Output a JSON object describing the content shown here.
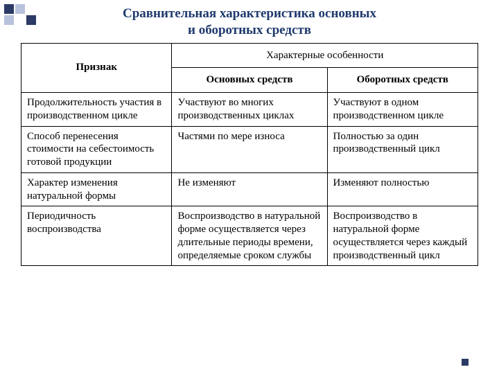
{
  "title_line1": "Сравнительная характеристика основных",
  "title_line2": "и оборотных средств",
  "colors": {
    "title_color": "#1f3a6e",
    "border_color": "#000000",
    "deco_dark": "#2b3a66",
    "deco_light": "#b8c2dc",
    "background": "#ffffff"
  },
  "table": {
    "header": {
      "col1": "Признак",
      "col2_top": "Характерные особенности",
      "col2_sub1": "Основных средств",
      "col2_sub2": "Оборотных средств"
    },
    "rows": [
      {
        "c1": "Продолжительность участия в производственном цикле",
        "c2": "Участвуют во многих производственных циклах",
        "c3": "Участвуют в одном производственном цикле"
      },
      {
        "c1": "Способ перенесения стоимости на себестоимость готовой продукции",
        "c2": "Частями по мере износа",
        "c3": "Полностью за один производственный цикл"
      },
      {
        "c1": "Характер изменения натуральной формы",
        "c2": "Не изменяют",
        "c3": "Изменяют полностью"
      },
      {
        "c1": "Периодичность воспроизводства",
        "c2": "Воспроизводство в натуральной форме осуществляется через длительные периоды времени, определяемые сроком службы",
        "c3": "Воспроизводство в натуральной форме осуществляется через каждый производственный цикл"
      }
    ]
  }
}
